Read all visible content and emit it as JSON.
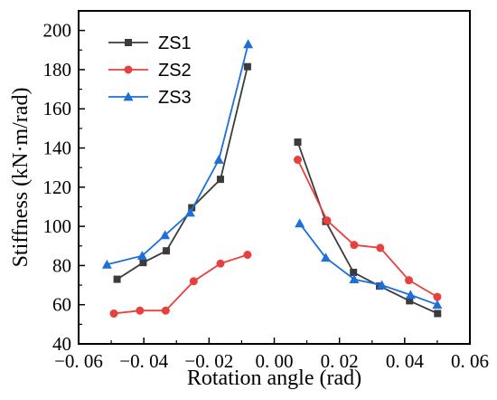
{
  "chart_data": {
    "type": "line",
    "xlabel": "Rotation angle (rad)",
    "ylabel": "Stiffness (kN·m/rad)",
    "xlim": [
      -0.06,
      0.06
    ],
    "ylim": [
      40,
      210
    ],
    "xticks": [
      -0.06,
      -0.04,
      -0.02,
      0.0,
      0.02,
      0.04,
      0.06
    ],
    "xtick_labels": [
      "−0. 06",
      "−0. 04",
      "−0. 02",
      "0. 00",
      "0. 02",
      "0. 04",
      "0. 06"
    ],
    "yticks": [
      40,
      60,
      80,
      100,
      120,
      140,
      160,
      180,
      200
    ],
    "ytick_labels": [
      "40",
      "60",
      "80",
      "100",
      "120",
      "140",
      "160",
      "180",
      "200"
    ],
    "grid": false,
    "legend_position": "top-left",
    "series": [
      {
        "name": "ZS1",
        "color": "#3b3b3b",
        "marker": "square",
        "segments": [
          {
            "x": [
              -0.0482,
              -0.0402,
              -0.0331,
              -0.0253,
              -0.0165,
              -0.0082
            ],
            "y": [
              73,
              81.5,
              87.5,
              109.5,
              124,
              181.5
            ]
          },
          {
            "x": [
              0.0072,
              0.0158,
              0.0243,
              0.0323,
              0.0415,
              0.0501
            ],
            "y": [
              143,
              102.5,
              76.5,
              69.5,
              62,
              55.5
            ]
          }
        ]
      },
      {
        "name": "ZS2",
        "color": "#e8403e",
        "marker": "circle",
        "segments": [
          {
            "x": [
              -0.0492,
              -0.0412,
              -0.0333,
              -0.0247,
              -0.0165,
              -0.0082
            ],
            "y": [
              55.5,
              57,
              57,
              72,
              81,
              85.5
            ]
          },
          {
            "x": [
              0.0072,
              0.0162,
              0.0245,
              0.0325,
              0.0413,
              0.05
            ],
            "y": [
              134,
              103,
              90.5,
              89,
              72.5,
              64
            ]
          }
        ]
      },
      {
        "name": "ZS3",
        "color": "#1e6fd9",
        "marker": "triangle",
        "segments": [
          {
            "x": [
              -0.0513,
              -0.0405,
              -0.0335,
              -0.0258,
              -0.017,
              -0.008
            ],
            "y": [
              80.5,
              85,
              95.5,
              107,
              134,
              193
            ]
          },
          {
            "x": [
              0.0078,
              0.0158,
              0.0245,
              0.033,
              0.0418,
              0.05
            ],
            "y": [
              101.5,
              84,
              73,
              70,
              65,
              60
            ]
          }
        ]
      }
    ]
  }
}
